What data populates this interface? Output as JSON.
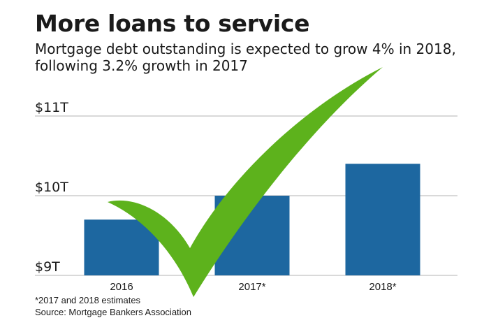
{
  "header": {
    "title": "More loans to service",
    "subtitle_line1": "Mortgage debt outstanding is expected to grow 4% in 2018,",
    "subtitle_line2": "following 3.2% growth in 2017"
  },
  "footer": {
    "note": "*2017 and 2018 estimates",
    "source": "Source: Mortgage Bankers Association"
  },
  "overlay": {
    "icon": "checkmark-icon",
    "color": "#5db21c"
  },
  "colors": {
    "bar": "#1d67a0",
    "grid": "#b3b3b3",
    "text": "#1a1a1a"
  },
  "chart_data": {
    "type": "bar",
    "title": "More loans to service",
    "xlabel": "",
    "ylabel": "",
    "categories": [
      "2016",
      "2017*",
      "2018*"
    ],
    "values": [
      9.7,
      10.0,
      10.4
    ],
    "ylim": [
      9,
      11
    ],
    "yticks": [
      9,
      10,
      11
    ],
    "ytick_labels": [
      "$9T",
      "$10T",
      "$11T"
    ],
    "grid": true,
    "legend": "none"
  }
}
